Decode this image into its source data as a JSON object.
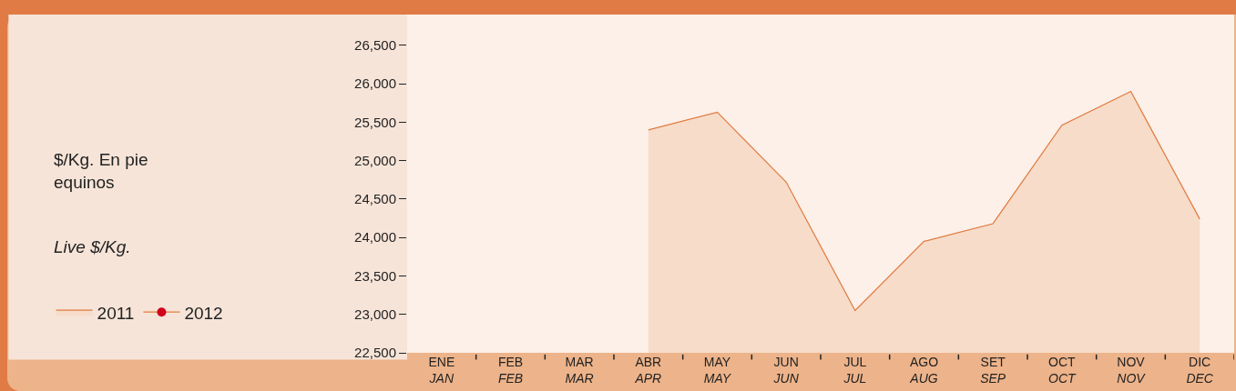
{
  "chart_data": {
    "type": "area",
    "title": "$/Kg. En pie\nequinos",
    "subtitle": "Live $/Kg.",
    "categories": [
      "ENE\nJAN",
      "FEB\nFEB",
      "MAR\nMAR",
      "ABR\nAPR",
      "MAY\nMAY",
      "JUN\nJUN",
      "JUL\nJUL",
      "AGO\nAUG",
      "SET\nSEP",
      "OCT\nOCT",
      "NOV\nNOV",
      "DIC\nDEC"
    ],
    "series": [
      {
        "name": "2011",
        "color": "#e07a3f",
        "values": [
          null,
          null,
          null,
          25400,
          25630,
          24720,
          23050,
          23950,
          24180,
          25460,
          25900,
          24240
        ]
      },
      {
        "name": "2012",
        "type": "line",
        "color": "#d0021b",
        "marker": "circle",
        "values": [
          null,
          null,
          null,
          null,
          null,
          null,
          null,
          null,
          null,
          null,
          null,
          null
        ]
      }
    ],
    "ylim": [
      22500,
      26900
    ],
    "yticks": [
      {
        "value": 22500,
        "label": "22,500"
      },
      {
        "value": 23000,
        "label": "23,000"
      },
      {
        "value": 23500,
        "label": "23,500"
      },
      {
        "value": 24000,
        "label": "24,000"
      },
      {
        "value": 24500,
        "label": "24,500"
      },
      {
        "value": 25000,
        "label": "25,000"
      },
      {
        "value": 25500,
        "label": "25,500"
      },
      {
        "value": 26000,
        "label": "26,000"
      },
      {
        "value": 26500,
        "label": "26,500"
      }
    ],
    "grid": false,
    "legend": "left"
  }
}
